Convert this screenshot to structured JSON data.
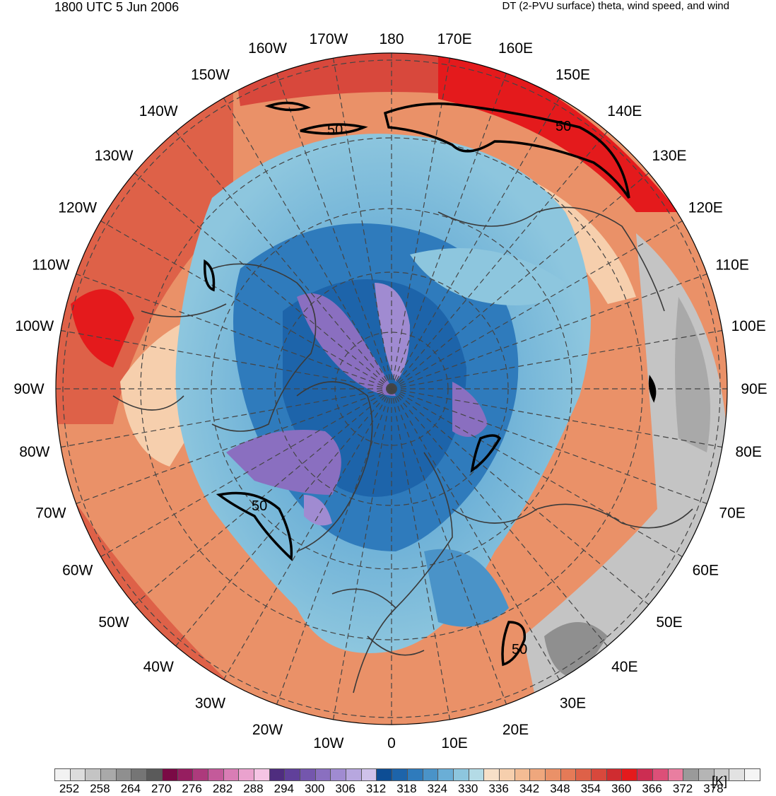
{
  "header": {
    "valid_time": "1800 UTC 5 Jun 2006",
    "field_description": "DT (2-PVU surface) theta, wind speed, and wind"
  },
  "map": {
    "projection": "north-polar-stereographic",
    "longitude_labels": [
      {
        "text": "180",
        "lon": 180
      },
      {
        "text": "170E",
        "lon": 170
      },
      {
        "text": "160E",
        "lon": 160
      },
      {
        "text": "150E",
        "lon": 150
      },
      {
        "text": "140E",
        "lon": 140
      },
      {
        "text": "130E",
        "lon": 130
      },
      {
        "text": "120E",
        "lon": 120
      },
      {
        "text": "110E",
        "lon": 110
      },
      {
        "text": "100E",
        "lon": 100
      },
      {
        "text": "90E",
        "lon": 90
      },
      {
        "text": "80E",
        "lon": 80
      },
      {
        "text": "70E",
        "lon": 70
      },
      {
        "text": "60E",
        "lon": 60
      },
      {
        "text": "50E",
        "lon": 50
      },
      {
        "text": "40E",
        "lon": 40
      },
      {
        "text": "30E",
        "lon": 30
      },
      {
        "text": "20E",
        "lon": 20
      },
      {
        "text": "10E",
        "lon": 10
      },
      {
        "text": "0",
        "lon": 0
      },
      {
        "text": "10W",
        "lon": -10
      },
      {
        "text": "20W",
        "lon": -20
      },
      {
        "text": "30W",
        "lon": -30
      },
      {
        "text": "40W",
        "lon": -40
      },
      {
        "text": "50W",
        "lon": -50
      },
      {
        "text": "60W",
        "lon": -60
      },
      {
        "text": "70W",
        "lon": -70
      },
      {
        "text": "80W",
        "lon": -80
      },
      {
        "text": "90W",
        "lon": -90
      },
      {
        "text": "100W",
        "lon": -100
      },
      {
        "text": "110W",
        "lon": -110
      },
      {
        "text": "120W",
        "lon": -120
      },
      {
        "text": "130W",
        "lon": -130
      },
      {
        "text": "140W",
        "lon": -140
      },
      {
        "text": "150W",
        "lon": -150
      },
      {
        "text": "160W",
        "lon": -160
      },
      {
        "text": "170W",
        "lon": -170
      }
    ],
    "wind_speed_contour_labels": [
      "50",
      "50",
      "50",
      "50"
    ]
  },
  "colorbar": {
    "units": "[K]",
    "colors": [
      "#f2f2f2",
      "#dcdcdc",
      "#c4c4c4",
      "#a9a9a9",
      "#8f8f8f",
      "#757575",
      "#5a5a5a",
      "#7a0a45",
      "#961e60",
      "#ad3a7c",
      "#c45a9a",
      "#d97db5",
      "#eaa2ce",
      "#f5c4e4",
      "#4f2d7f",
      "#60409a",
      "#7456ad",
      "#8a6fc0",
      "#a08bd1",
      "#b7a7df",
      "#cfc2ea",
      "#0d4d94",
      "#1d64aa",
      "#2f7bbc",
      "#4a93c8",
      "#6aaed6",
      "#8dc6de",
      "#b4dbe6",
      "#f7e0c8",
      "#f6cfad",
      "#f3bc94",
      "#efa77d",
      "#ea9168",
      "#e57a57",
      "#de6148",
      "#d8483c",
      "#cf2c30",
      "#e41a1c",
      "#cc2d52",
      "#dc4f78",
      "#e97ea0",
      "#9a9a9a",
      "#b5b5b5",
      "#cccccc",
      "#e2e2e2",
      "#f5f5f5"
    ],
    "tick_labels": [
      "252",
      "258",
      "264",
      "270",
      "276",
      "282",
      "288",
      "294",
      "300",
      "306",
      "312",
      "318",
      "324",
      "330",
      "336",
      "342",
      "348",
      "354",
      "360",
      "366",
      "372",
      "378"
    ]
  }
}
